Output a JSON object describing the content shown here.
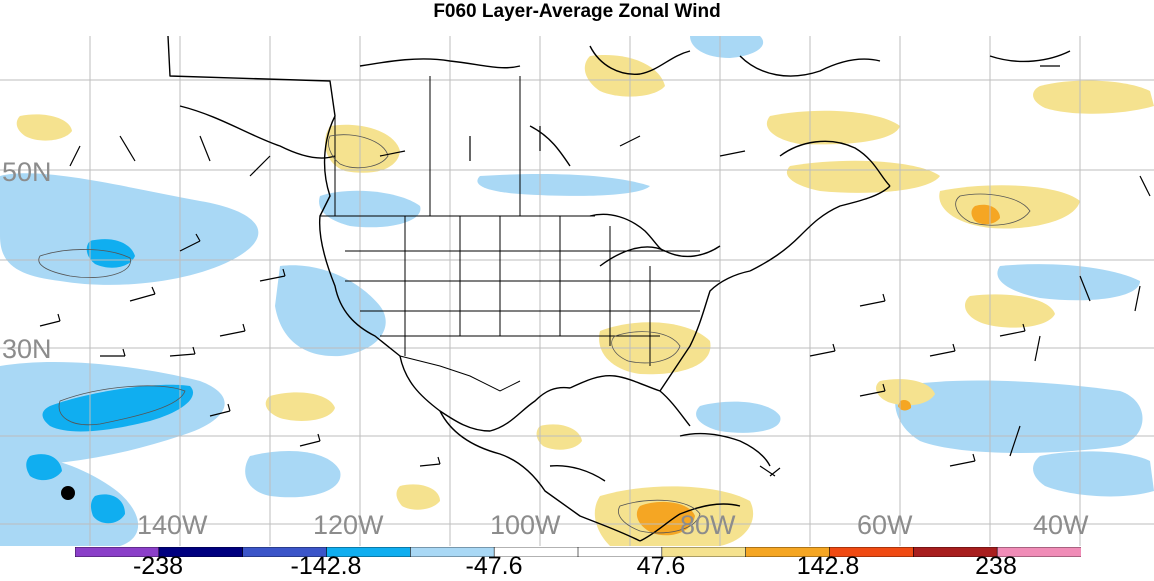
{
  "title": "F060 Layer-Average Zonal Wind",
  "lat_labels": [
    "50N",
    "30N"
  ],
  "lon_labels": [
    "140W",
    "120W",
    "100W",
    "80W",
    "60W",
    "40W"
  ],
  "colorbar": {
    "colors": [
      "#8b3fc9",
      "#00007f",
      "#3b55c9",
      "#10aef0",
      "#a9d8f5",
      "#ffffff",
      "#ffffff",
      "#f5e28f",
      "#f5a623",
      "#f04a12",
      "#a81e1e",
      "#f08cb7"
    ],
    "labels": [
      "-238",
      "-142.8",
      "-47.6",
      "47.6",
      "142.8",
      "238"
    ]
  },
  "colors": {
    "negative_light": "#a9d8f5",
    "negative_mid": "#10aef0",
    "positive_light": "#f5e28f",
    "positive_mid": "#f5a623",
    "grid": "#bdbdbd",
    "coast": "#000000"
  }
}
